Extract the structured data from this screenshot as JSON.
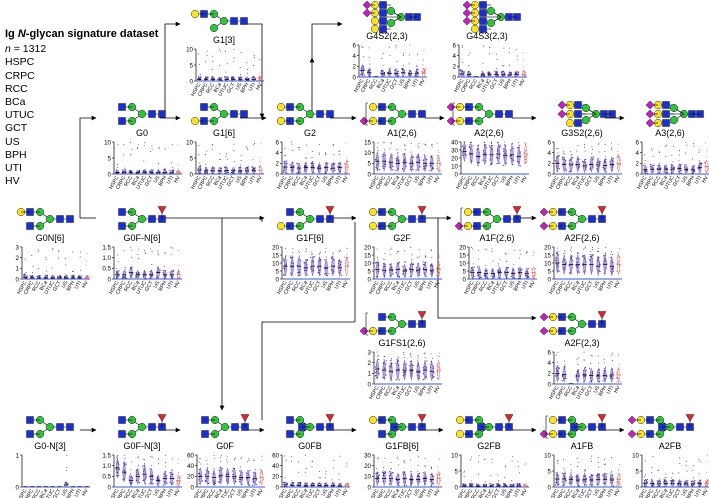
{
  "legend": {
    "title_pre": "Ig ",
    "title_italic": "N",
    "title_post": "-glycan signature dataset",
    "n_label": "n",
    "n_value": " = 1312",
    "groups": [
      "HSPC",
      "CRPC",
      "RCC",
      "BCa",
      "UTUC",
      "GCT",
      "US",
      "BPH",
      "UTI",
      "HV"
    ]
  },
  "colors": {
    "glcnac": "#1a2fd1",
    "mannose": "#2ec43a",
    "galactose": "#f7e224",
    "fucose": "#e5232a",
    "sialic_acid": "#c51fc4",
    "violin": "#7a5ccf",
    "violin_dark": "#3b2c9a",
    "hv": "#e06868",
    "axis_line": "#3a57d8"
  },
  "panels": [
    {
      "id": "G1[3]",
      "label": "G1[3]",
      "ticks": [
        "10",
        "5",
        "0"
      ],
      "ymax": 10,
      "medians": [
        0.5,
        0.5,
        0.5,
        0.4,
        0.5,
        0.5,
        0.4,
        0.5,
        0.5,
        0.6
      ]
    },
    {
      "id": "G4S2(2,3)",
      "label": "G4S2(2,3)",
      "ticks": [
        "6",
        "4",
        "2",
        "0"
      ],
      "ymax": 6,
      "medians": [
        1.2,
        0.8,
        0,
        0.6,
        0.7,
        0.7,
        0.8,
        0.6,
        0.7,
        0.8
      ]
    },
    {
      "id": "G4S3(2,3)",
      "label": "G4S3(2,3)",
      "ticks": [
        "6",
        "4",
        "2",
        "0"
      ],
      "ymax": 6,
      "medians": [
        0.6,
        0.5,
        0,
        0.4,
        0.4,
        0.5,
        0.5,
        0.4,
        0.5,
        0.5
      ]
    },
    {
      "id": "G0",
      "label": "G0",
      "ticks": [
        "10",
        "5",
        "0"
      ],
      "ymax": 10,
      "medians": [
        0.5,
        0.5,
        0.4,
        0.4,
        0.5,
        0.5,
        0.4,
        0.5,
        0.4,
        0.4
      ]
    },
    {
      "id": "G1[6]",
      "label": "G1[6]",
      "ticks": [
        "10",
        "5",
        "0"
      ],
      "ymax": 10,
      "medians": [
        1.2,
        1.0,
        1.0,
        1.0,
        1.1,
        1.0,
        1.0,
        1.0,
        1.0,
        1.2
      ]
    },
    {
      "id": "G2",
      "label": "G2",
      "ticks": [
        "6",
        "4",
        "2",
        "0"
      ],
      "ymax": 6,
      "medians": [
        1.3,
        1.2,
        1.1,
        1.2,
        1.2,
        1.1,
        1.2,
        1.1,
        1.2,
        1.3
      ]
    },
    {
      "id": "A1(2,6)",
      "label": "A1(2,6)",
      "ticks": [
        "15",
        "10",
        "5",
        "0"
      ],
      "ymax": 15,
      "medians": [
        6,
        6,
        5.5,
        5,
        5.5,
        5,
        5.5,
        5,
        5,
        5
      ]
    },
    {
      "id": "A2(2,6)",
      "label": "A2(2,6)",
      "ticks": [
        "40",
        "30",
        "20",
        "10",
        "0"
      ],
      "ymax": 40,
      "medians": [
        28,
        25,
        22,
        24,
        24,
        25,
        23,
        24,
        22,
        25
      ]
    },
    {
      "id": "G3S2(2,6)",
      "label": "G3S2(2,6)",
      "ticks": [
        "6",
        "4",
        "2",
        "0"
      ],
      "ymax": 6,
      "medians": [
        2.0,
        1.8,
        1.7,
        1.8,
        1.5,
        1.8,
        1.7,
        1.6,
        1.8,
        2.0
      ]
    },
    {
      "id": "A3(2,6)",
      "label": "A3(2,6)",
      "ticks": [
        "6",
        "4",
        "2",
        "0"
      ],
      "ymax": 6,
      "medians": [
        0.8,
        0.9,
        0.9,
        0.9,
        0.9,
        1.0,
        0.9,
        0.8,
        1.2,
        1.4
      ]
    },
    {
      "id": "G0N[6]",
      "label": "G0N[6]",
      "ticks": [
        "3",
        "2",
        "1",
        "0"
      ],
      "ymax": 3,
      "medians": [
        0.15,
        0.1,
        0.1,
        0.1,
        0.1,
        0.1,
        0.1,
        0.1,
        0.1,
        0.1
      ]
    },
    {
      "id": "G0F-N[6]",
      "label": "G0F-N[6]",
      "ticks": [
        "1.5",
        "1.0",
        "0.5",
        "0"
      ],
      "ymax": 1.5,
      "medians": [
        0.2,
        0.2,
        0.3,
        0.2,
        0.2,
        0.2,
        0.3,
        0.2,
        0.2,
        0.2
      ]
    },
    {
      "id": "G1F[6]",
      "label": "G1F[6]",
      "ticks": [
        "20",
        "15",
        "10",
        "5",
        "0"
      ],
      "ymax": 20,
      "medians": [
        8,
        8,
        8,
        7,
        8,
        8,
        7,
        8,
        7,
        8
      ]
    },
    {
      "id": "G2F",
      "label": "G2F",
      "ticks": [
        "20",
        "15",
        "10",
        "5",
        "0"
      ],
      "ymax": 20,
      "medians": [
        6,
        5.5,
        5.5,
        6,
        5,
        6,
        5.5,
        6,
        5.5,
        6
      ]
    },
    {
      "id": "A1F(2,6)",
      "label": "A1F(2,6)",
      "ticks": [
        "20",
        "15",
        "10",
        "5",
        "0"
      ],
      "ymax": 20,
      "medians": [
        4,
        4,
        3.5,
        3.5,
        4,
        4,
        3.5,
        4,
        3.5,
        4
      ]
    },
    {
      "id": "A2F(2,6)",
      "label": "A2F(2,6)",
      "ticks": [
        "20",
        "15",
        "10",
        "5",
        "0"
      ],
      "ymax": 20,
      "medians": [
        10,
        9,
        9,
        9,
        9,
        9,
        8,
        9,
        8,
        9
      ]
    },
    {
      "id": "G1FS1(2,6)",
      "label": "G1FS1(2,6)",
      "ticks": [
        "3",
        "2",
        "1",
        "0"
      ],
      "ymax": 3,
      "medians": [
        1.4,
        1.3,
        1.2,
        1.3,
        1.3,
        1.3,
        1.2,
        1.3,
        1.2,
        1.3
      ]
    },
    {
      "id": "A2F(2,3)",
      "label": "A2F(2,3)",
      "ticks": [
        "6",
        "4",
        "2",
        "0"
      ],
      "ymax": 6,
      "medians": [
        2.0,
        1.8,
        0,
        1.5,
        1.7,
        1.6,
        1.5,
        1.6,
        1.7,
        1.7
      ]
    },
    {
      "id": "G0-N[3]",
      "label": "G0-N[3]",
      "ticks": [
        "1",
        "0"
      ],
      "ymax": 1.5,
      "medians": [
        0,
        0,
        0,
        0,
        0,
        0,
        0.1,
        0,
        0,
        0
      ]
    },
    {
      "id": "G0F-N[3]",
      "label": "G0F-N[3]",
      "ticks": [
        "1.5",
        "1.0",
        "0.5",
        "0"
      ],
      "ymax": 1.5,
      "medians": [
        0.9,
        0.7,
        0.3,
        0.5,
        0.6,
        0.5,
        0.3,
        0.4,
        0.4,
        0.3
      ]
    },
    {
      "id": "G0F",
      "label": "G0F",
      "ticks": [
        "60",
        "40",
        "20",
        "0"
      ],
      "ymax": 60,
      "medians": [
        20,
        20,
        18,
        22,
        20,
        20,
        18,
        18,
        16,
        18
      ]
    },
    {
      "id": "G0FB",
      "label": "G0FB",
      "ticks": [
        "60",
        "40",
        "20",
        "0"
      ],
      "ymax": 60,
      "medians": [
        4,
        3,
        3,
        2.5,
        3,
        2.5,
        3,
        2.5,
        2,
        2.5
      ]
    },
    {
      "id": "G1FB[6]",
      "label": "G1FB[6]",
      "ticks": [
        "30",
        "20",
        "10",
        "0"
      ],
      "ymax": 30,
      "medians": [
        8,
        8,
        8,
        7,
        8,
        7,
        7,
        8,
        7,
        8
      ]
    },
    {
      "id": "G2FB",
      "label": "G2FB",
      "ticks": [
        "10",
        "5",
        "0"
      ],
      "ymax": 10,
      "medians": [
        0.3,
        0.3,
        0.2,
        0.3,
        0.3,
        0.3,
        0.3,
        0.3,
        0.3,
        0.3
      ]
    },
    {
      "id": "A1FB",
      "label": "A1FB",
      "ticks": [
        "10",
        "5",
        "0"
      ],
      "ymax": 10,
      "medians": [
        2.5,
        2.5,
        2.3,
        2.2,
        2.4,
        2.2,
        2.3,
        2.4,
        2.2,
        2.3
      ]
    },
    {
      "id": "A2FB",
      "label": "A2FB",
      "ticks": [
        "10",
        "5",
        "0"
      ],
      "ymax": 10,
      "medians": [
        1.2,
        1.1,
        1.0,
        1.1,
        1.0,
        1.1,
        1.0,
        1.0,
        1.0,
        1.1
      ]
    }
  ]
}
